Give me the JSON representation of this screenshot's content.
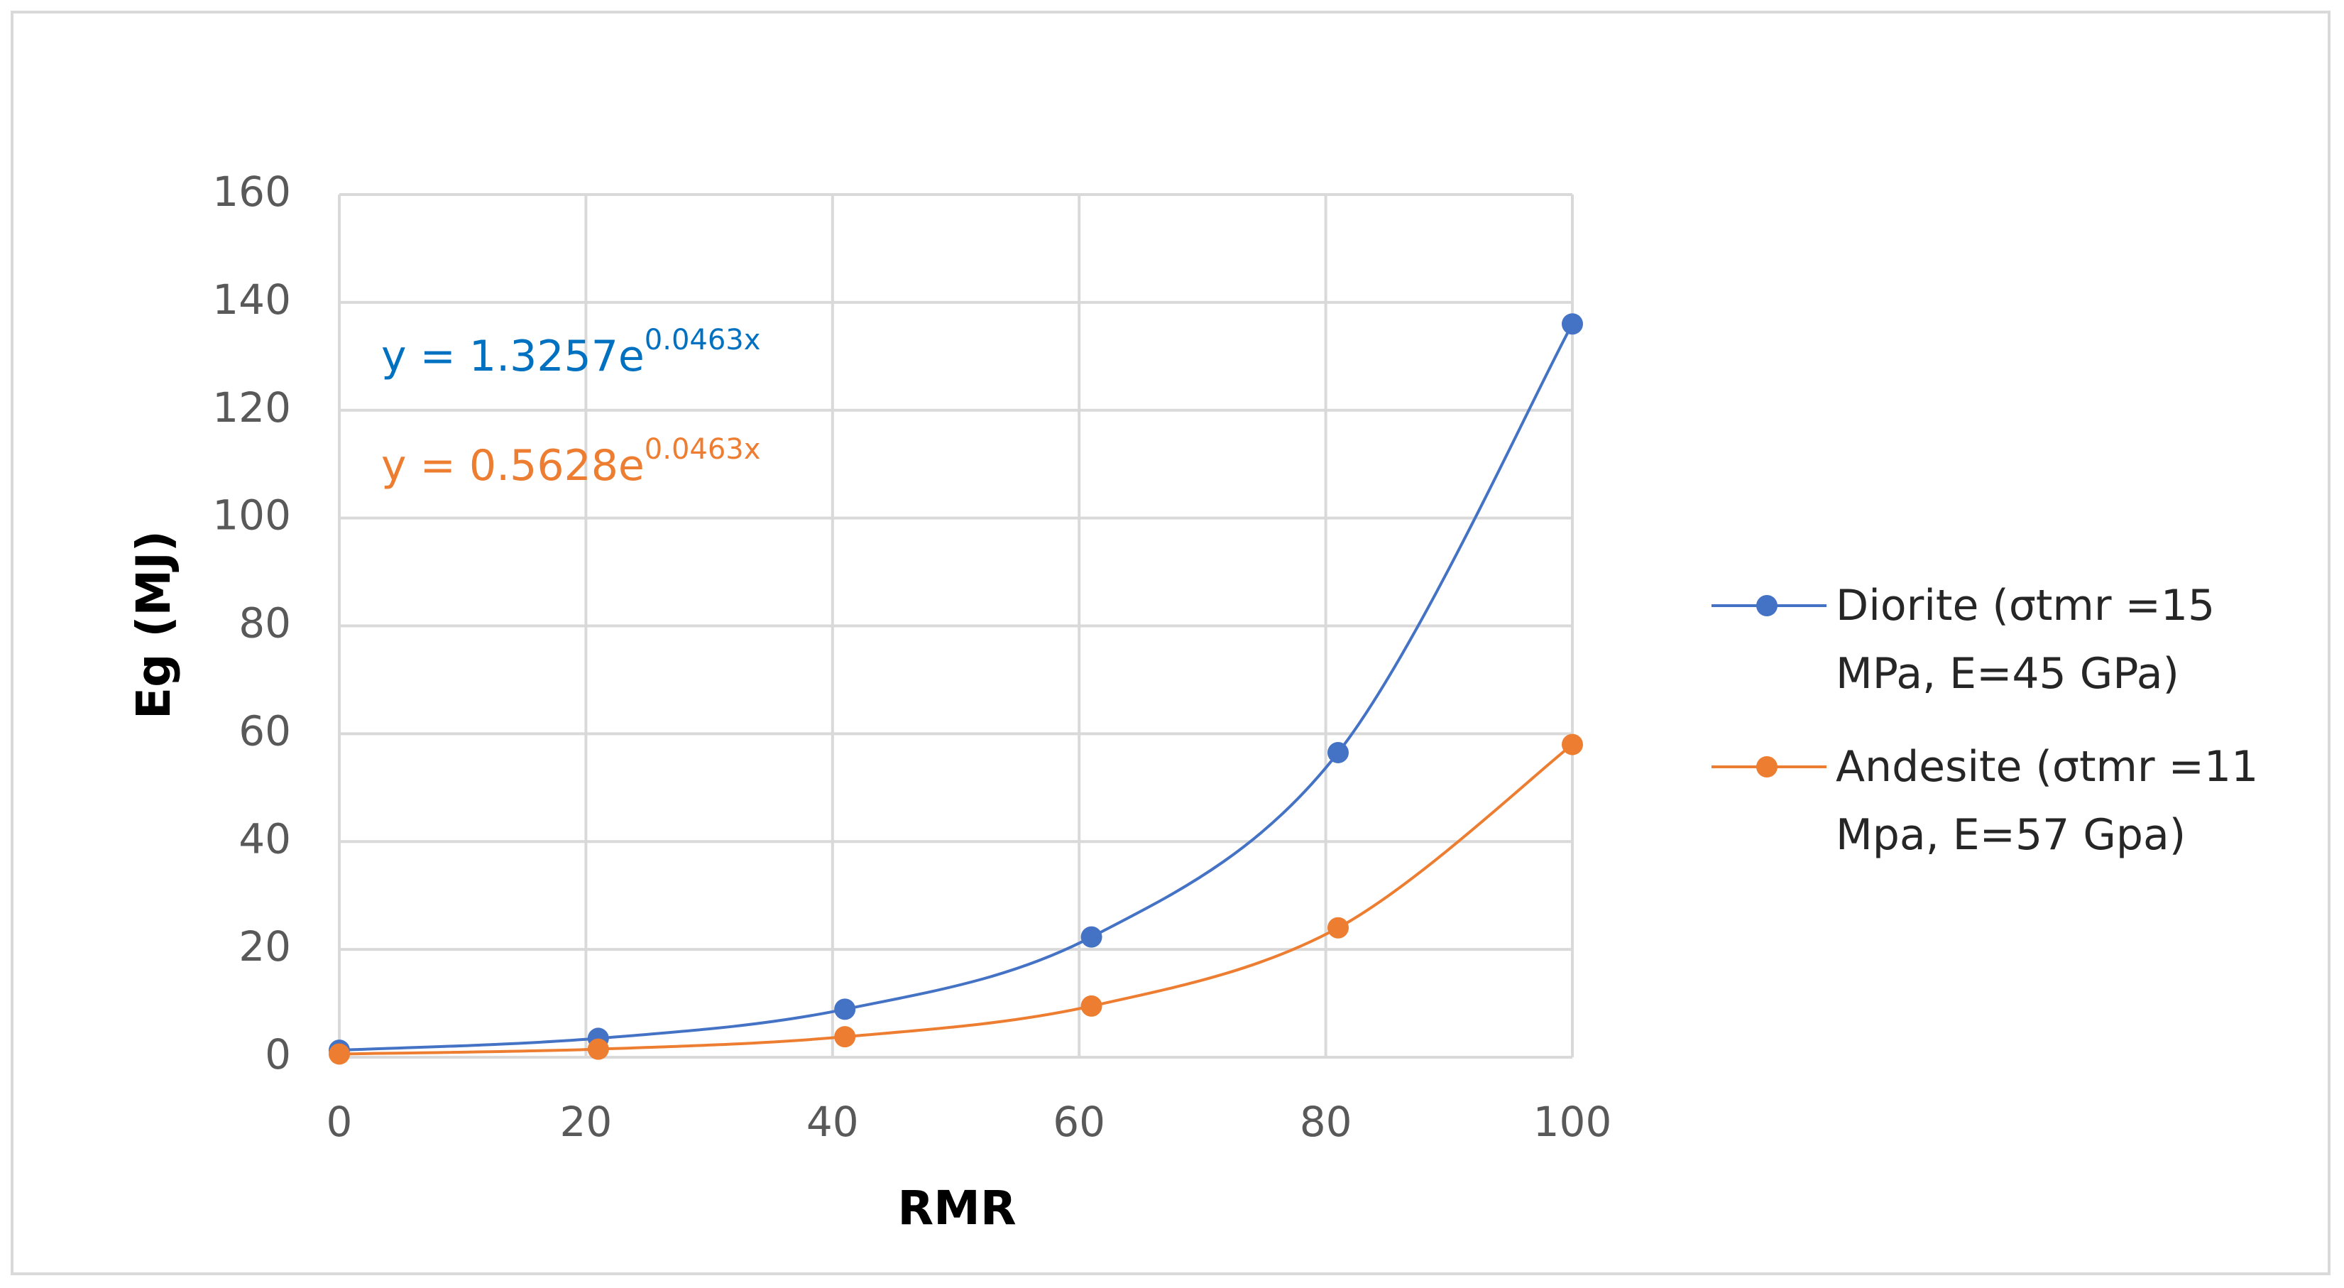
{
  "chart_data": {
    "type": "line",
    "x_label": "RMR",
    "y_label": "Eg (MJ)",
    "x": [
      0,
      21,
      41,
      61,
      81,
      100
    ],
    "series": [
      {
        "name": "Diorite (σtmr =15 MPa, E=45 GPa)",
        "color": "#4472c4",
        "values": [
          1.3,
          3.5,
          8.9,
          22.3,
          56.5,
          136
        ]
      },
      {
        "name": "Andesite (σtmr =11 Mpa, E=57 Gpa)",
        "color": "#ed7d31",
        "values": [
          0.6,
          1.5,
          3.8,
          9.5,
          24,
          58
        ]
      }
    ],
    "annotations": [
      {
        "text": "y = 1.3257e",
        "exponent": "0.0463x",
        "color": "#0070c0"
      },
      {
        "text": "y = 0.5628e",
        "exponent": "0.0463x",
        "color": "#ed7d31"
      }
    ],
    "xlim": [
      0,
      100
    ],
    "xticks": [
      0,
      20,
      40,
      60,
      80,
      100
    ],
    "ylim": [
      0,
      160
    ],
    "yticks": [
      0,
      20,
      40,
      60,
      80,
      100,
      120,
      140,
      160
    ],
    "grid": true,
    "legend": "right"
  }
}
